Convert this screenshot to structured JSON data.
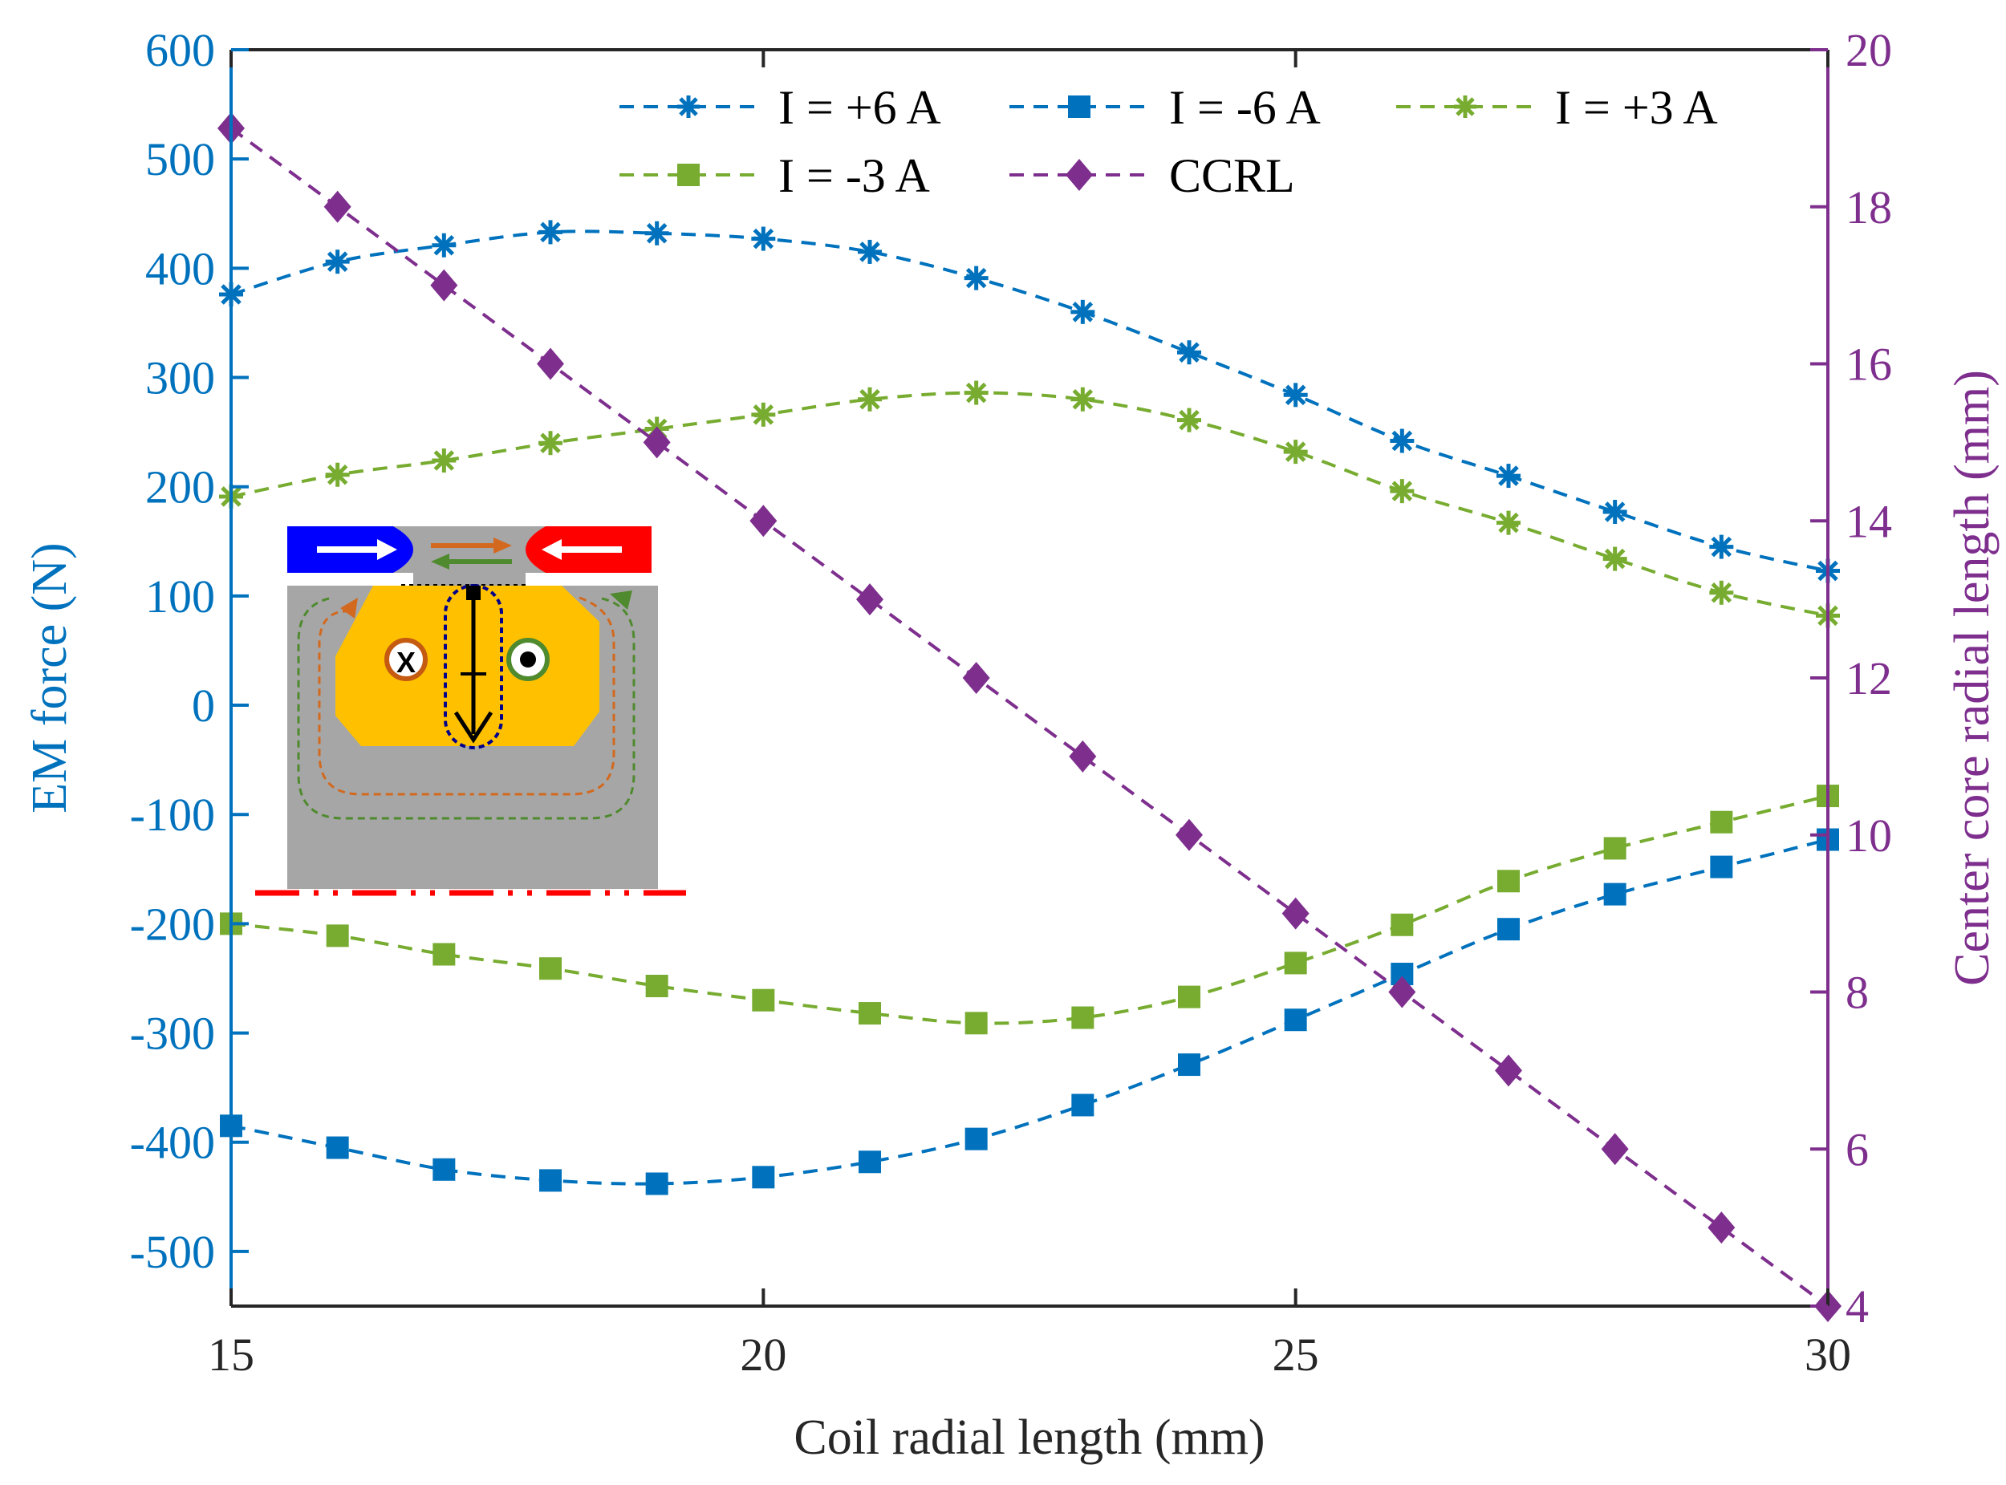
{
  "chart_data": {
    "type": "line",
    "xlabel": "Coil radial length (mm)",
    "ylabel_left": "EM force (N)",
    "ylabel_right": "Center core radial length (mm)",
    "xlim": [
      15,
      30
    ],
    "ylim_left": [
      -550,
      600
    ],
    "ylim_right": [
      4,
      20
    ],
    "xticks": [
      15,
      20,
      25,
      30
    ],
    "yticks_left": [
      600,
      500,
      400,
      300,
      200,
      100,
      0,
      -100,
      -200,
      -300,
      -400,
      -500
    ],
    "yticks_right": [
      20,
      18,
      16,
      14,
      12,
      10,
      8,
      6,
      4
    ],
    "grid": false,
    "legend_position": "top",
    "x": [
      15,
      16,
      17,
      18,
      19,
      20,
      21,
      22,
      23,
      24,
      25,
      26,
      27,
      28,
      29,
      30
    ],
    "series": [
      {
        "name": "I = +6 A",
        "axis": "left",
        "marker": "asterisk",
        "color": "#0072BD",
        "values": [
          376,
          406,
          421,
          433,
          432,
          427,
          415,
          391,
          360,
          323,
          284,
          242,
          210,
          177,
          145,
          123
        ]
      },
      {
        "name": "I = -6 A",
        "axis": "left",
        "marker": "square",
        "color": "#0072BD",
        "values": [
          -385,
          -405,
          -425,
          -435,
          -438,
          -432,
          -418,
          -397,
          -366,
          -329,
          -288,
          -246,
          -205,
          -173,
          -148,
          -123
        ]
      },
      {
        "name": "I = +3 A",
        "axis": "left",
        "marker": "asterisk",
        "color": "#77AC30",
        "values": [
          191,
          211,
          224,
          240,
          253,
          266,
          280,
          286,
          280,
          261,
          232,
          196,
          167,
          134,
          103,
          82
        ]
      },
      {
        "name": "I = -3 A",
        "axis": "left",
        "marker": "square",
        "color": "#77AC30",
        "values": [
          -200,
          -211,
          -228,
          -241,
          -257,
          -270,
          -282,
          -291,
          -286,
          -267,
          -236,
          -201,
          -161,
          -131,
          -107,
          -83
        ]
      },
      {
        "name": "CCRL",
        "axis": "right",
        "marker": "diamond",
        "color": "#7E2F8E",
        "values": [
          19,
          18,
          17,
          16,
          15,
          14,
          13,
          12,
          11,
          10,
          9,
          8,
          7,
          6,
          5,
          4
        ]
      }
    ],
    "inset": {
      "winding_symbols": [
        "X",
        "●"
      ]
    }
  }
}
